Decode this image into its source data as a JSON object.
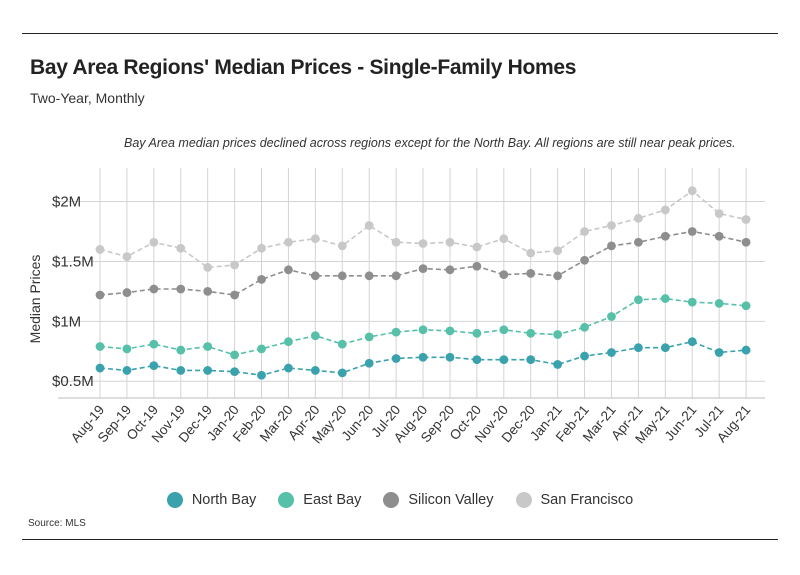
{
  "chart_data": {
    "type": "line",
    "title": "Bay Area Regions' Median Prices - Single-Family Homes",
    "subtitle": "Two-Year, Monthly",
    "annotation": "Bay Area median prices declined across regions except for the North Bay. All regions are still near peak prices.",
    "ylabel": "Median Prices",
    "source": "Source:  MLS",
    "y_ticks": [
      {
        "value": 0.5,
        "label": "$0.5M"
      },
      {
        "value": 1.0,
        "label": "$1M"
      },
      {
        "value": 1.5,
        "label": "$1.5M"
      },
      {
        "value": 2.0,
        "label": "$2M"
      }
    ],
    "ylim": [
      0.36,
      2.28
    ],
    "grid": true,
    "legend_position": "bottom",
    "categories": [
      "Aug-19",
      "Sep-19",
      "Oct-19",
      "Nov-19",
      "Dec-19",
      "Jan-20",
      "Feb-20",
      "Mar-20",
      "Apr-20",
      "May-20",
      "Jun-20",
      "Jul-20",
      "Aug-20",
      "Sep-20",
      "Oct-20",
      "Nov-20",
      "Dec-20",
      "Jan-21",
      "Feb-21",
      "Mar-21",
      "Apr-21",
      "May-21",
      "Jun-21",
      "Jul-21",
      "Aug-21"
    ],
    "series": [
      {
        "name": "North Bay",
        "color": "#3aa2ac",
        "values": [
          0.61,
          0.59,
          0.63,
          0.59,
          0.59,
          0.58,
          0.55,
          0.61,
          0.59,
          0.57,
          0.65,
          0.69,
          0.7,
          0.7,
          0.68,
          0.68,
          0.68,
          0.64,
          0.71,
          0.74,
          0.78,
          0.78,
          0.83,
          0.74,
          0.76
        ]
      },
      {
        "name": "East Bay",
        "color": "#56c0a9",
        "values": [
          0.79,
          0.77,
          0.81,
          0.76,
          0.79,
          0.72,
          0.77,
          0.83,
          0.88,
          0.81,
          0.87,
          0.91,
          0.93,
          0.92,
          0.9,
          0.93,
          0.9,
          0.89,
          0.95,
          1.04,
          1.18,
          1.19,
          1.16,
          1.15,
          1.13
        ]
      },
      {
        "name": "Silicon Valley",
        "color": "#8e8e8e",
        "values": [
          1.22,
          1.24,
          1.27,
          1.27,
          1.25,
          1.22,
          1.35,
          1.43,
          1.38,
          1.38,
          1.38,
          1.38,
          1.44,
          1.43,
          1.46,
          1.39,
          1.4,
          1.38,
          1.51,
          1.63,
          1.66,
          1.71,
          1.75,
          1.71,
          1.66
        ]
      },
      {
        "name": "San Francisco",
        "color": "#c8c8c8",
        "values": [
          1.6,
          1.54,
          1.66,
          1.61,
          1.45,
          1.47,
          1.61,
          1.66,
          1.69,
          1.63,
          1.8,
          1.66,
          1.65,
          1.66,
          1.62,
          1.69,
          1.57,
          1.59,
          1.75,
          1.8,
          1.86,
          1.93,
          2.09,
          1.9,
          1.85
        ]
      }
    ]
  }
}
